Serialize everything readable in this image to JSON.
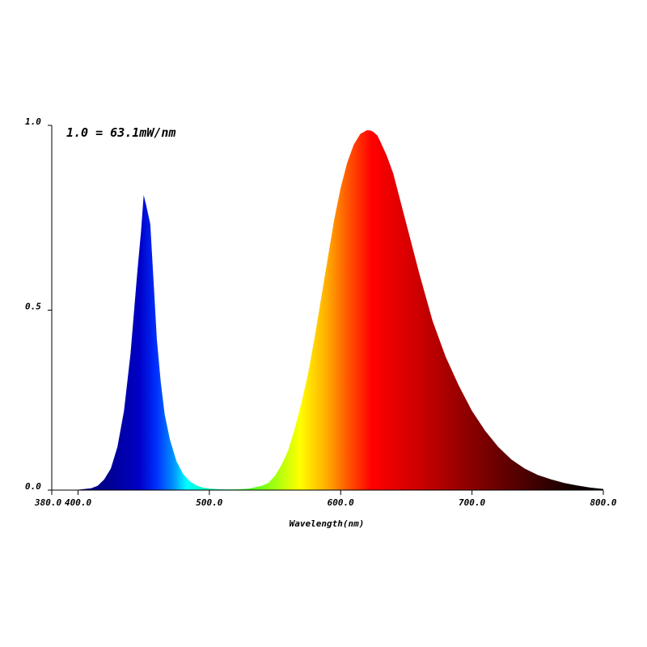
{
  "chart_data": {
    "type": "area",
    "annotation": "1.0 = 63.1mW/nm",
    "xlabel": "Wavelength(nm)",
    "ylabel": "",
    "xlim": [
      380,
      800
    ],
    "ylim": [
      0,
      1.0
    ],
    "x_ticks": [
      {
        "value": 380,
        "label": "380.0"
      },
      {
        "value": 400,
        "label": "400.0"
      },
      {
        "value": 500,
        "label": "500.0"
      },
      {
        "value": 600,
        "label": "600.0"
      },
      {
        "value": 700,
        "label": "700.0"
      },
      {
        "value": 800,
        "label": "800.0"
      }
    ],
    "y_ticks": [
      {
        "value": 0.0,
        "label": "0.0"
      },
      {
        "value": 0.5,
        "label": "0.5"
      },
      {
        "value": 1.0,
        "label": "1.0"
      }
    ],
    "fill": "wavelength-spectrum-gradient",
    "series": [
      {
        "x": [
          380,
          400,
          410,
          415,
          420,
          425,
          430,
          435,
          440,
          445,
          448,
          450,
          452,
          455,
          458,
          460,
          463,
          466,
          470,
          475,
          480,
          485,
          490,
          495,
          500,
          510,
          520,
          530,
          540,
          545,
          550,
          555,
          560,
          565,
          570,
          575,
          580,
          585,
          590,
          595,
          600,
          605,
          610,
          615,
          620,
          623,
          625,
          628,
          630,
          635,
          640,
          645,
          650,
          660,
          670,
          680,
          690,
          700,
          710,
          720,
          730,
          740,
          750,
          760,
          770,
          780,
          790,
          800
        ],
        "y": [
          0.0,
          0.001,
          0.005,
          0.012,
          0.03,
          0.06,
          0.12,
          0.22,
          0.38,
          0.6,
          0.72,
          0.82,
          0.79,
          0.74,
          0.55,
          0.42,
          0.3,
          0.21,
          0.14,
          0.08,
          0.045,
          0.025,
          0.013,
          0.007,
          0.004,
          0.002,
          0.002,
          0.004,
          0.012,
          0.02,
          0.04,
          0.07,
          0.11,
          0.17,
          0.24,
          0.32,
          0.42,
          0.53,
          0.64,
          0.75,
          0.84,
          0.91,
          0.96,
          0.99,
          1.0,
          0.999,
          0.995,
          0.985,
          0.97,
          0.93,
          0.88,
          0.81,
          0.74,
          0.6,
          0.47,
          0.37,
          0.29,
          0.22,
          0.165,
          0.12,
          0.085,
          0.06,
          0.042,
          0.03,
          0.02,
          0.013,
          0.007,
          0.003
        ]
      }
    ]
  }
}
